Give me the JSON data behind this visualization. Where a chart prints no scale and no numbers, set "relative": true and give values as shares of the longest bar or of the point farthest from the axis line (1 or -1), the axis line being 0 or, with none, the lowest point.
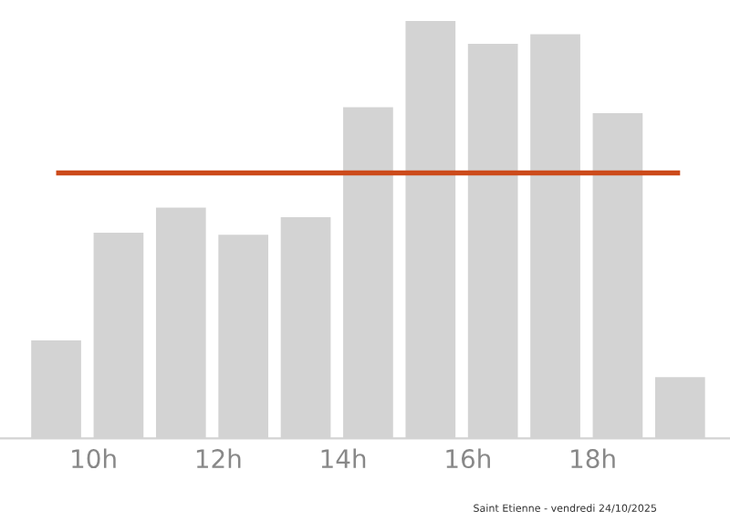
{
  "chart_data": {
    "type": "bar",
    "relative": true,
    "x": [
      9.4,
      10.4,
      11.4,
      12.4,
      13.4,
      14.4,
      15.4,
      16.4,
      17.4,
      18.4,
      19.4
    ],
    "values": [
      0.235,
      0.493,
      0.553,
      0.488,
      0.53,
      0.793,
      1,
      0.945,
      0.968,
      0.779,
      0.147
    ],
    "color": "#d3d3d3",
    "xticks": [
      {
        "value": 10,
        "label": "10h"
      },
      {
        "value": 12,
        "label": "12h"
      },
      {
        "value": 14,
        "label": "14h"
      },
      {
        "value": 16,
        "label": "16h"
      },
      {
        "value": 18,
        "label": "18h"
      }
    ],
    "xlim": [
      8.5,
      20.2
    ],
    "ref_lines": [
      {
        "axis": "y",
        "value": 0.636,
        "label": null,
        "color": "#cc4a1a"
      }
    ],
    "annotations": [
      "Saint Etienne - vendredi 24/10/2025"
    ],
    "grid": false,
    "legend": false
  }
}
